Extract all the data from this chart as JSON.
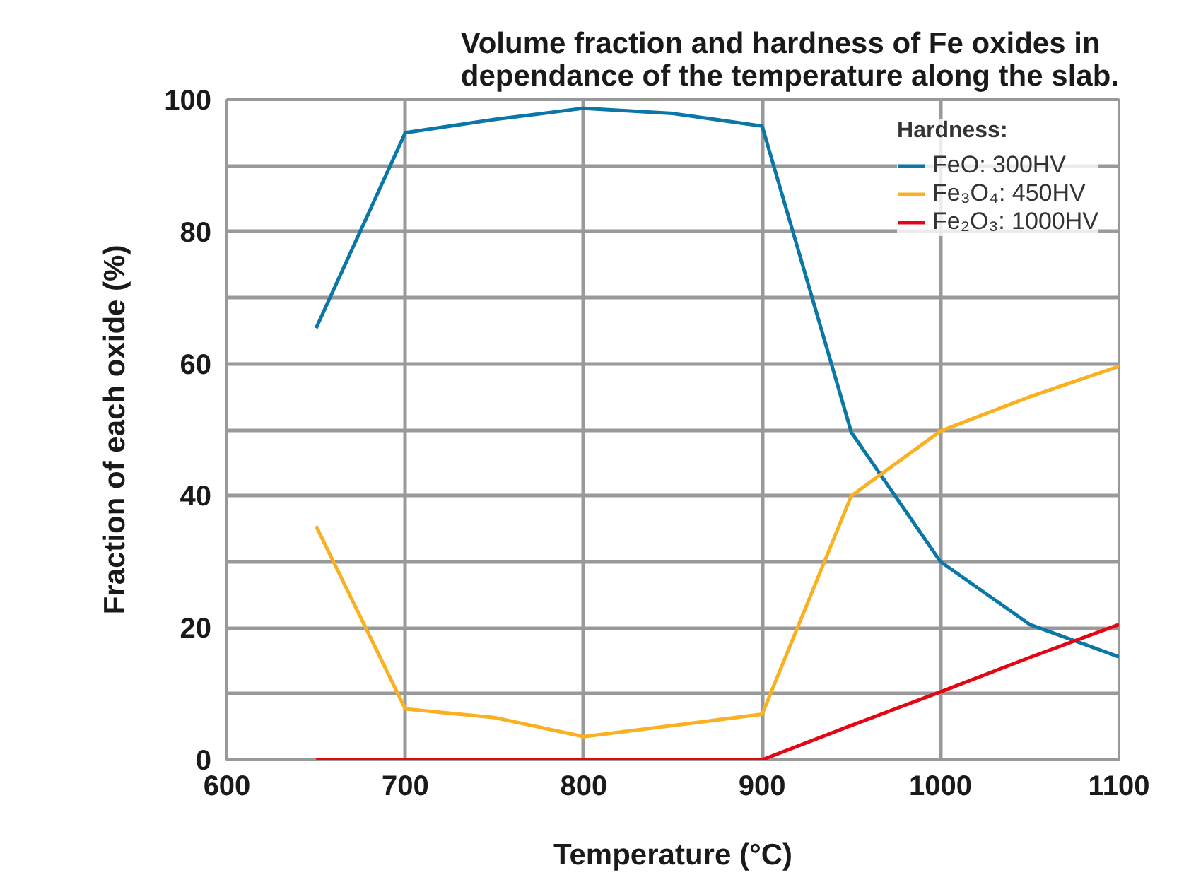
{
  "chart_data": {
    "type": "line",
    "title": "Volume fraction and hardness of Fe oxides in\ndependance of the temperature along the slab.",
    "xlabel": "Temperature (°C)",
    "ylabel": "Fraction of each oxide (%)",
    "legend_title": "Hardness:",
    "x": [
      650,
      700,
      750,
      800,
      850,
      900,
      950,
      1000,
      1050,
      1100
    ],
    "series": [
      {
        "name": "FeO: 300HV",
        "color": "#0a77a6",
        "values": [
          65.4,
          95,
          97,
          98.7,
          97.9,
          96,
          49.6,
          30,
          20.5,
          15.6
        ]
      },
      {
        "name": "Fe₃O₄: 450HV",
        "color": "#f9b122",
        "values": [
          35.4,
          7.7,
          6.4,
          3.5,
          5.2,
          6.9,
          40,
          49.8,
          55,
          59.6
        ]
      },
      {
        "name": "Fe₂O₃: 1000HV",
        "color": "#e30613",
        "values": [
          0,
          0,
          0,
          0,
          0,
          0,
          5.2,
          10.3,
          15.5,
          20.5
        ]
      }
    ],
    "xlim": [
      600,
      1100
    ],
    "ylim": [
      0,
      100
    ],
    "xticks": [
      600,
      700,
      800,
      900,
      1000,
      1100
    ],
    "yticks": [
      0,
      {
        "value": 10,
        "label": null
      },
      20,
      {
        "value": 30,
        "label": null
      },
      40,
      {
        "value": 50,
        "label": null
      },
      60,
      {
        "value": 70,
        "label": null
      },
      80,
      {
        "value": 90,
        "label": null
      },
      100
    ],
    "grid": true,
    "legend": "top right",
    "marker": "none",
    "line_style": "solid"
  }
}
